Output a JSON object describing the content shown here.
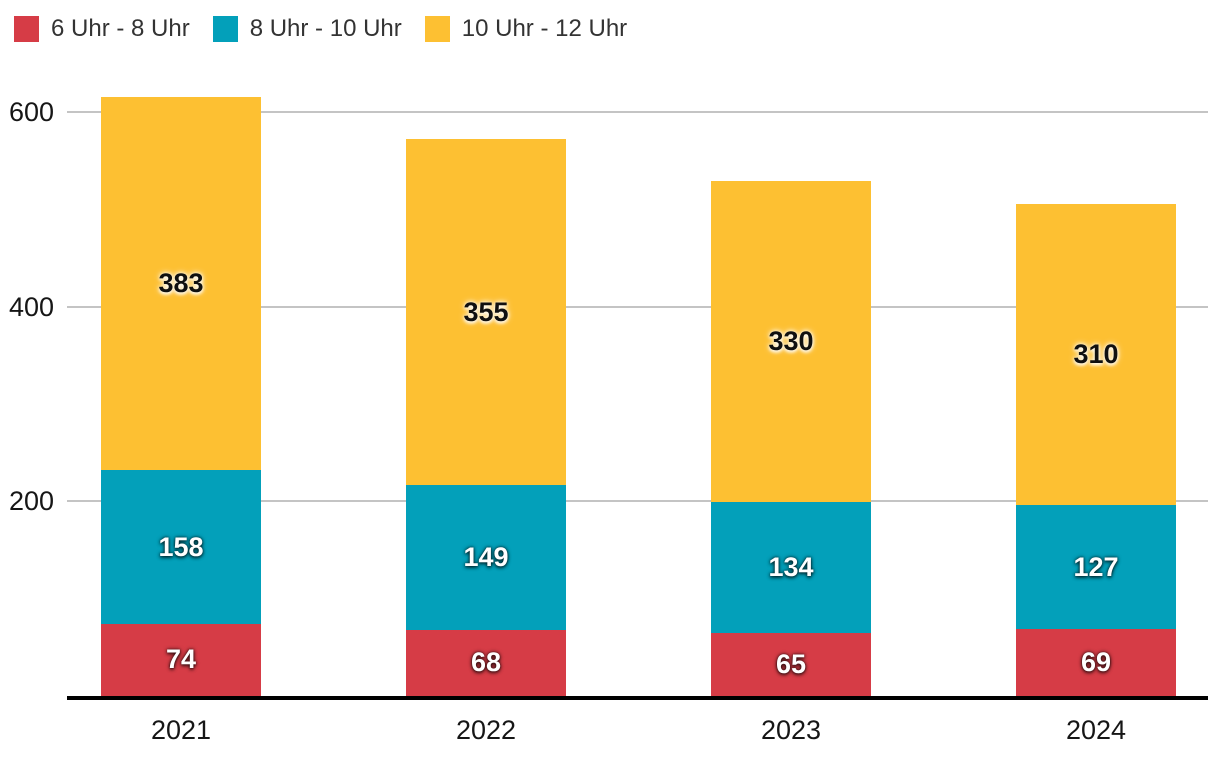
{
  "chart_data": {
    "type": "bar",
    "stacked": true,
    "categories": [
      "2021",
      "2022",
      "2023",
      "2024"
    ],
    "series": [
      {
        "name": "6 Uhr - 8 Uhr",
        "color": "#d63c46",
        "label_style": "light",
        "values": [
          74,
          68,
          65,
          69
        ]
      },
      {
        "name": "8 Uhr - 10 Uhr",
        "color": "#03a0ba",
        "label_style": "light",
        "values": [
          158,
          149,
          134,
          127
        ]
      },
      {
        "name": "10 Uhr - 12 Uhr",
        "color": "#fdc032",
        "label_style": "dark",
        "values": [
          383,
          355,
          330,
          310
        ]
      }
    ],
    "yticks": [
      200,
      400,
      600
    ],
    "ylim": [
      0,
      640
    ],
    "grid": true,
    "legend_position": "top-left",
    "gridline_color": "#c4c4c4",
    "axis_line_color": "#000000"
  }
}
